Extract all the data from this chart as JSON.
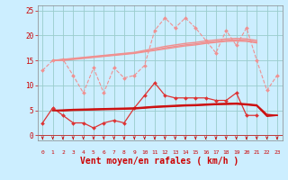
{
  "x": [
    0,
    1,
    2,
    3,
    4,
    5,
    6,
    7,
    8,
    9,
    10,
    11,
    12,
    13,
    14,
    15,
    16,
    17,
    18,
    19,
    20,
    21,
    22,
    23
  ],
  "background_color": "#cceeff",
  "grid_color": "#99cccc",
  "xlabel": "Vent moyen/en rafales ( km/h )",
  "xlabel_color": "#cc0000",
  "xlabel_fontsize": 7,
  "tick_color": "#cc0000",
  "ylim": [
    -1,
    26
  ],
  "yticks": [
    0,
    5,
    10,
    15,
    20,
    25
  ],
  "xlim": [
    -0.5,
    23.5
  ],
  "series": [
    {
      "name": "upper_dotted",
      "color": "#f09090",
      "linewidth": 0.8,
      "marker": "D",
      "markersize": 2.0,
      "linestyle": "--",
      "data": [
        13,
        15,
        15.2,
        12,
        8.5,
        13.5,
        8.5,
        13.5,
        11.5,
        12,
        14,
        21,
        23.5,
        21.5,
        23.5,
        21.5,
        19,
        16.5,
        21,
        18,
        21.5,
        15,
        9,
        12
      ]
    },
    {
      "name": "upper_line1",
      "color": "#f09090",
      "linewidth": 1.0,
      "marker": null,
      "markersize": 0,
      "linestyle": "-",
      "data": [
        null,
        15,
        15.2,
        15.4,
        15.6,
        15.8,
        16.0,
        16.2,
        16.4,
        16.6,
        17.0,
        17.4,
        17.8,
        18.1,
        18.4,
        18.6,
        18.9,
        19.1,
        19.3,
        19.4,
        19.3,
        19.0,
        null,
        null
      ]
    },
    {
      "name": "upper_line2",
      "color": "#f09090",
      "linewidth": 1.0,
      "marker": null,
      "markersize": 0,
      "linestyle": "-",
      "data": [
        null,
        15,
        15.1,
        15.3,
        15.5,
        15.7,
        15.9,
        16.1,
        16.3,
        16.5,
        16.8,
        17.1,
        17.5,
        17.8,
        18.1,
        18.3,
        18.6,
        18.8,
        19.0,
        19.1,
        19.0,
        18.7,
        null,
        null
      ]
    },
    {
      "name": "upper_line3",
      "color": "#f09090",
      "linewidth": 1.0,
      "marker": null,
      "markersize": 0,
      "linestyle": "-",
      "data": [
        null,
        15,
        15.0,
        15.2,
        15.4,
        15.6,
        15.8,
        16.0,
        16.2,
        16.4,
        16.7,
        17.0,
        17.3,
        17.6,
        17.9,
        18.1,
        18.4,
        18.6,
        18.8,
        18.9,
        18.8,
        18.5,
        null,
        null
      ]
    },
    {
      "name": "lower_jagged",
      "color": "#dd3333",
      "linewidth": 0.9,
      "marker": "D",
      "markersize": 2.0,
      "linestyle": "-",
      "data": [
        2.5,
        5.5,
        4.0,
        2.5,
        2.5,
        1.5,
        2.5,
        3.0,
        2.5,
        5.5,
        8.0,
        10.5,
        8.0,
        7.5,
        7.5,
        7.5,
        7.5,
        7.0,
        7.0,
        8.5,
        4.0,
        4.0,
        null,
        null
      ]
    },
    {
      "name": "lower_line1",
      "color": "#cc1111",
      "linewidth": 1.0,
      "marker": null,
      "markersize": 0,
      "linestyle": "-",
      "data": [
        null,
        5.0,
        5.1,
        5.2,
        5.25,
        5.3,
        5.35,
        5.4,
        5.45,
        5.5,
        5.65,
        5.8,
        5.9,
        6.0,
        6.1,
        6.15,
        6.25,
        6.35,
        6.4,
        6.45,
        6.3,
        6.1,
        4.2,
        4.0
      ]
    },
    {
      "name": "lower_line2",
      "color": "#cc1111",
      "linewidth": 1.0,
      "marker": null,
      "markersize": 0,
      "linestyle": "-",
      "data": [
        null,
        5.0,
        5.0,
        5.1,
        5.15,
        5.2,
        5.25,
        5.3,
        5.35,
        5.4,
        5.55,
        5.7,
        5.8,
        5.9,
        6.0,
        6.05,
        6.15,
        6.25,
        6.3,
        6.35,
        6.2,
        6.0,
        4.0,
        4.0
      ]
    },
    {
      "name": "lower_line3",
      "color": "#cc1111",
      "linewidth": 1.0,
      "marker": null,
      "markersize": 0,
      "linestyle": "-",
      "data": [
        null,
        5.0,
        4.9,
        5.0,
        5.05,
        5.1,
        5.15,
        5.2,
        5.25,
        5.3,
        5.45,
        5.6,
        5.7,
        5.8,
        5.9,
        5.95,
        6.05,
        6.15,
        6.2,
        6.25,
        6.1,
        5.9,
        3.8,
        4.0
      ]
    }
  ],
  "arrow_color": "#cc0000"
}
